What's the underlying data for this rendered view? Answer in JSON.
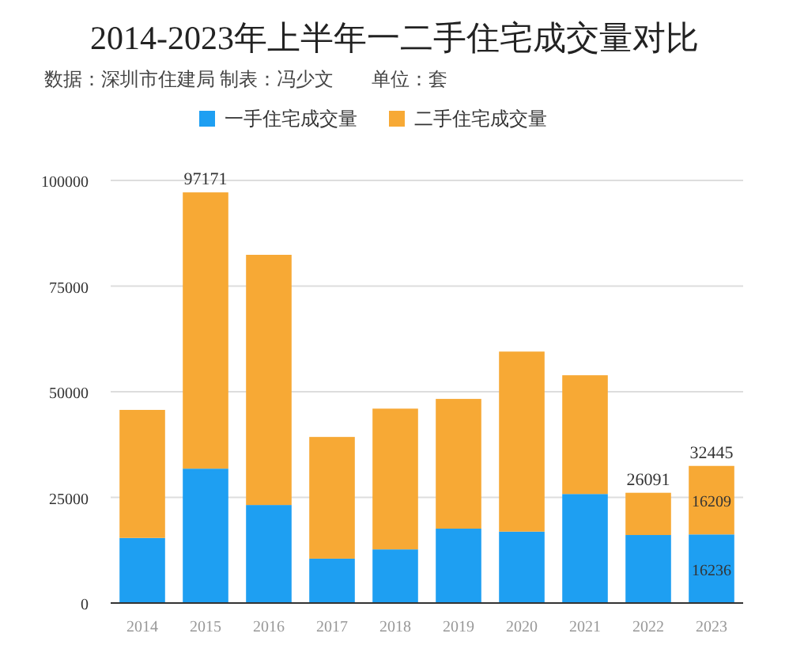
{
  "chart_data": {
    "type": "bar",
    "title": "2014-2023年上半年一二手住宅成交量对比",
    "subtitle": "数据：深圳市住建局 制表：冯少文　　单位：套",
    "categories": [
      "2014",
      "2015",
      "2016",
      "2017",
      "2018",
      "2019",
      "2020",
      "2021",
      "2022",
      "2023"
    ],
    "stacked": true,
    "series": [
      {
        "name": "一手住宅成交量",
        "color": "#1e9ff2",
        "values": [
          15400,
          31800,
          23200,
          10500,
          12700,
          17600,
          16900,
          25800,
          16100,
          16236
        ],
        "value_labels": [
          null,
          null,
          null,
          null,
          null,
          null,
          null,
          null,
          null,
          "16236"
        ]
      },
      {
        "name": "二手住宅成交量",
        "color": "#f7a935",
        "values": [
          30300,
          65371,
          59200,
          28800,
          33300,
          30700,
          42600,
          28100,
          9991,
          16209
        ],
        "value_labels": [
          null,
          null,
          null,
          null,
          null,
          null,
          null,
          null,
          null,
          "16209"
        ]
      }
    ],
    "totals": [
      null,
      "97171",
      null,
      null,
      null,
      null,
      null,
      null,
      "26091",
      "32445"
    ],
    "ylim": [
      0,
      100000
    ],
    "yticks": [
      0,
      25000,
      50000,
      75000,
      100000
    ],
    "grid": "y",
    "legend": "top"
  }
}
